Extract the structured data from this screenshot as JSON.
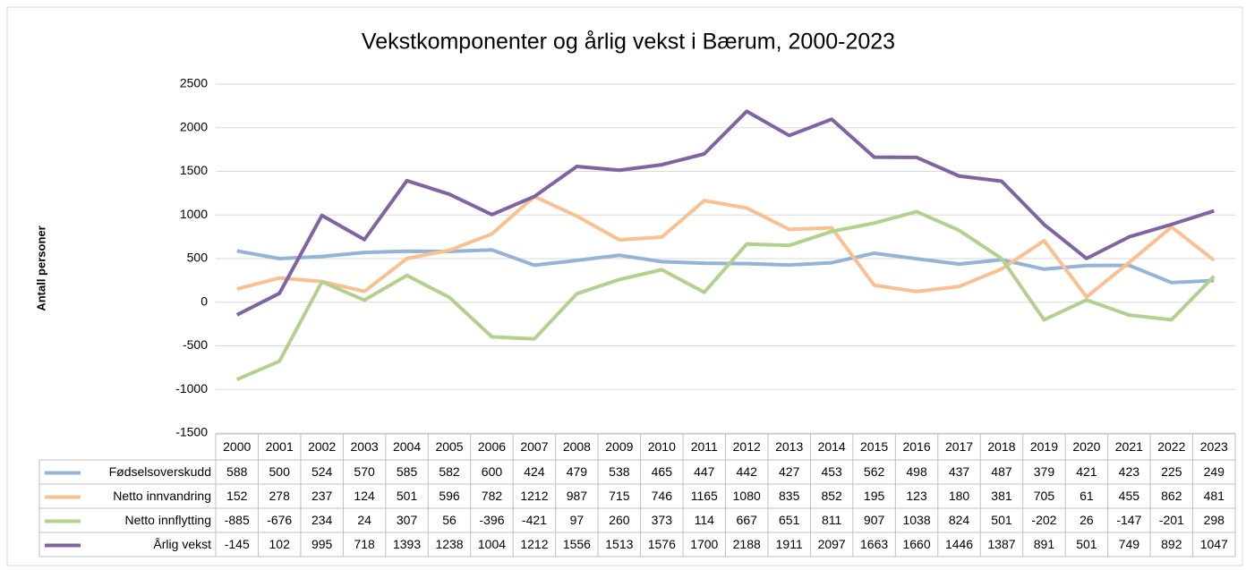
{
  "chart_data": {
    "type": "line",
    "title": "Vekstkomponenter  og årlig vekst i Bærum, 2000-2023",
    "y_label": "Antall personer",
    "categories": [
      "2000",
      "2001",
      "2002",
      "2003",
      "2004",
      "2005",
      "2006",
      "2007",
      "2008",
      "2009",
      "2010",
      "2011",
      "2012",
      "2013",
      "2014",
      "2015",
      "2016",
      "2017",
      "2018",
      "2019",
      "2020",
      "2021",
      "2022",
      "2023"
    ],
    "series": [
      {
        "name": "Fødselsoverskudd",
        "color": "#95b3d7",
        "values": [
          588,
          500,
          524,
          570,
          585,
          582,
          600,
          424,
          479,
          538,
          465,
          447,
          442,
          427,
          453,
          562,
          498,
          437,
          487,
          379,
          421,
          423,
          225,
          249
        ]
      },
      {
        "name": "Netto innvandring",
        "color": "#fac090",
        "values": [
          152,
          278,
          237,
          124,
          501,
          596,
          782,
          1212,
          987,
          715,
          746,
          1165,
          1080,
          835,
          852,
          195,
          123,
          180,
          381,
          705,
          61,
          455,
          862,
          481
        ]
      },
      {
        "name": "Netto innflytting",
        "color": "#b3d08e",
        "values": [
          -885,
          -676,
          234,
          24,
          307,
          56,
          -396,
          -421,
          97,
          260,
          373,
          114,
          667,
          651,
          811,
          907,
          1038,
          824,
          501,
          -202,
          26,
          -147,
          -201,
          298
        ]
      },
      {
        "name": "Årlig vekst",
        "color": "#8064a2",
        "values": [
          -145,
          102,
          995,
          718,
          1393,
          1238,
          1004,
          1212,
          1556,
          1513,
          1576,
          1700,
          2188,
          1911,
          2097,
          1663,
          1660,
          1446,
          1387,
          891,
          501,
          749,
          892,
          1047
        ]
      }
    ],
    "ylim": [
      -1500,
      2500
    ],
    "yticks": [
      -1500,
      -1000,
      -500,
      0,
      500,
      1000,
      1500,
      2000,
      2500
    ],
    "grid": true,
    "data_table": true
  }
}
